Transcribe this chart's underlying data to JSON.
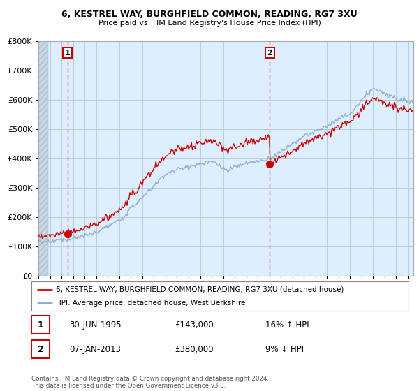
{
  "title": "6, KESTREL WAY, BURGHFIELD COMMON, READING, RG7 3XU",
  "subtitle": "Price paid vs. HM Land Registry's House Price Index (HPI)",
  "property_label": "6, KESTREL WAY, BURGHFIELD COMMON, READING, RG7 3XU (detached house)",
  "hpi_label": "HPI: Average price, detached house, West Berkshire",
  "footnote": "Contains HM Land Registry data © Crown copyright and database right 2024.\nThis data is licensed under the Open Government Licence v3.0.",
  "transaction1": {
    "num": "1",
    "date": "30-JUN-1995",
    "price": "£143,000",
    "hpi": "16% ↑ HPI",
    "x": 1995.5
  },
  "transaction2": {
    "num": "2",
    "date": "07-JAN-2013",
    "price": "£380,000",
    "hpi": "9% ↓ HPI",
    "x": 2013.05
  },
  "property_color": "#cc0000",
  "hpi_color": "#88aacc",
  "bg_color": "#ddeeff",
  "hatch_color": "#bbccdd",
  "grid_color": "#bbccdd",
  "vline_color": "#dd4444",
  "box_color": "#cc0000",
  "ylim": [
    0,
    800000
  ],
  "xlim_start": 1993.0,
  "xlim_end": 2025.5,
  "sale1_x": 1995.5,
  "sale1_y": 143000,
  "sale2_x": 2013.05,
  "sale2_y": 380000
}
